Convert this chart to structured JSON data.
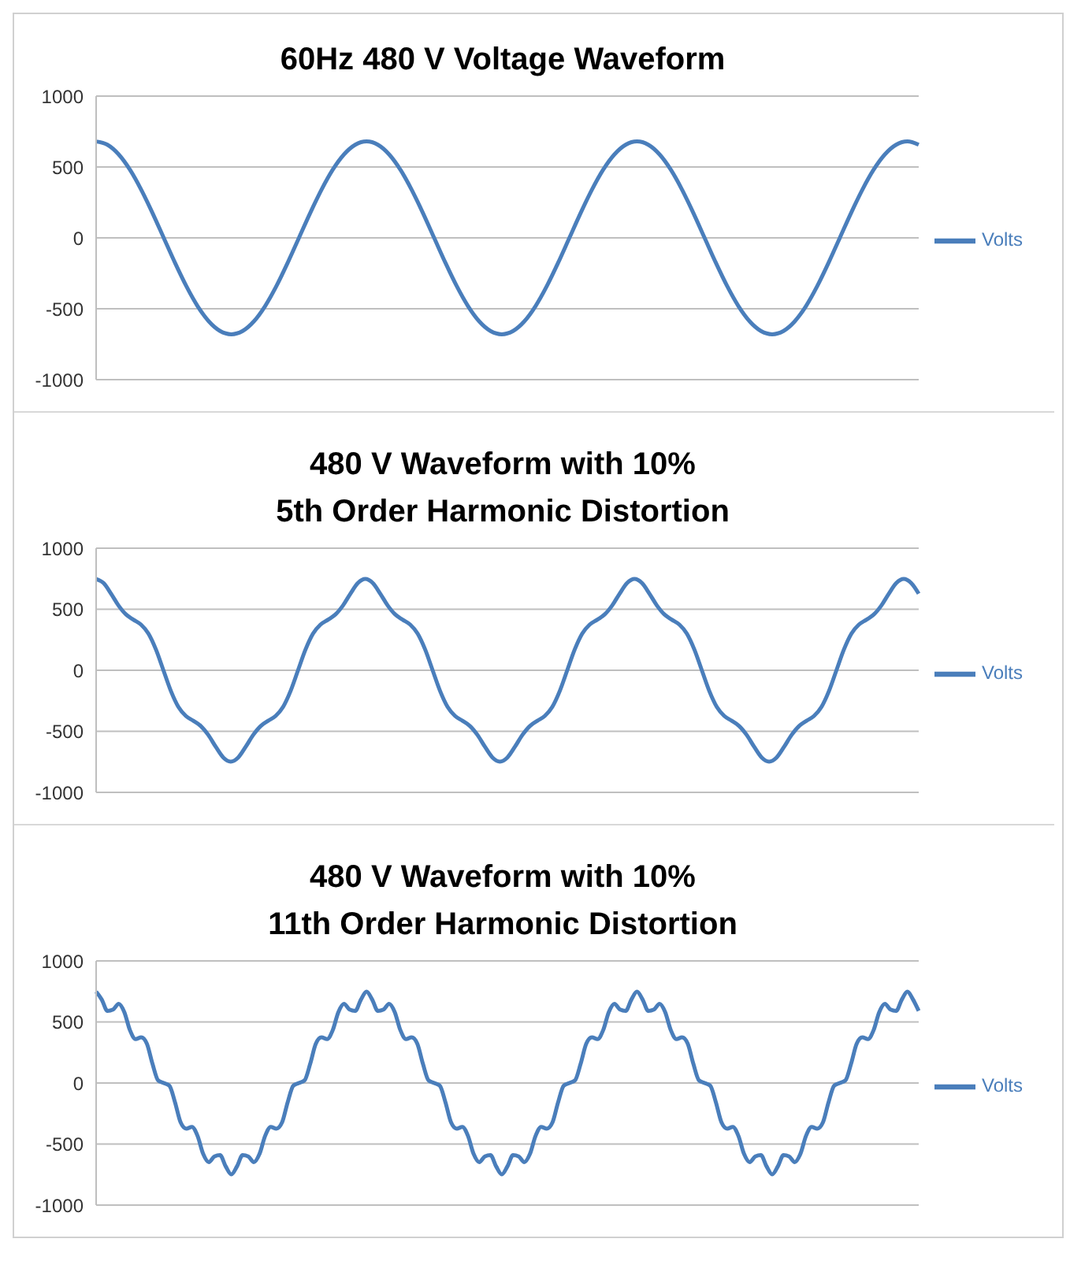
{
  "chart_data": [
    {
      "type": "line",
      "title": "60Hz 480 V Voltage Waveform",
      "categories": [
        null,
        null,
        null,
        null,
        null,
        null,
        null,
        null,
        null,
        null,
        null,
        null,
        null,
        null,
        null,
        null,
        null,
        null,
        null,
        null,
        null,
        null,
        null,
        null,
        null,
        null,
        null,
        null,
        null,
        null,
        null,
        null,
        null,
        null,
        null,
        null,
        null,
        null,
        null,
        null,
        null,
        null,
        null,
        null,
        null,
        null,
        null,
        null,
        null,
        null,
        null,
        null,
        null,
        null,
        null,
        null,
        null,
        null,
        null,
        null,
        null,
        null,
        null,
        null,
        null,
        null,
        null,
        null,
        null,
        null,
        null,
        null,
        null,
        null
      ],
      "series": [
        {
          "name": "Volts",
          "color": "#4a7ebb",
          "values": [
            680,
            657,
            589,
            481,
            340,
            176,
            0,
            -176,
            -340,
            -481,
            -589,
            -657,
            -680,
            -657,
            -589,
            -481,
            -340,
            -176,
            0,
            176,
            340,
            481,
            589,
            657,
            680,
            657,
            589,
            481,
            340,
            176,
            0,
            -176,
            -340,
            -481,
            -589,
            -657,
            -680,
            -657,
            -589,
            -481,
            -340,
            -176,
            0,
            176,
            340,
            481,
            589,
            657,
            680,
            657,
            589,
            481,
            340,
            176,
            0,
            -176,
            -340,
            -481,
            -589,
            -657,
            -680,
            -657,
            -589,
            -481,
            -340,
            -176,
            0,
            176,
            340,
            481,
            589,
            657,
            680,
            657
          ]
        }
      ],
      "ylim": [
        -1000,
        1000
      ],
      "yticks": [
        -1000,
        -500,
        0,
        500,
        1000
      ],
      "grid": "y",
      "legend": "right",
      "marker": "none",
      "line_style": "solid"
    },
    {
      "type": "line",
      "title": "480 V Waveform with 10%\n5th Order Harmonic Distortion",
      "categories": [
        null,
        null,
        null,
        null,
        null,
        null,
        null,
        null,
        null,
        null,
        null,
        null,
        null,
        null,
        null,
        null,
        null,
        null,
        null,
        null,
        null,
        null,
        null,
        null,
        null,
        null,
        null,
        null,
        null,
        null,
        null,
        null,
        null,
        null,
        null,
        null,
        null,
        null,
        null,
        null,
        null,
        null,
        null,
        null,
        null,
        null,
        null,
        null,
        null,
        null,
        null,
        null,
        null,
        null,
        null,
        null,
        null,
        null,
        null,
        null,
        null,
        null,
        null,
        null,
        null,
        null,
        null,
        null,
        null,
        null,
        null,
        null,
        null,
        null,
        null,
        null,
        null,
        null,
        null,
        null,
        null,
        null,
        null,
        null,
        null,
        null,
        null,
        null,
        null,
        null,
        null,
        null,
        null,
        null,
        null,
        null,
        null,
        null,
        null,
        null,
        null,
        null,
        null,
        null,
        null,
        null,
        null,
        null,
        null,
        null,
        null
      ],
      "series": [
        {
          "name": "Volts",
          "color": "#4a7ebb",
          "values": [
            748,
            714,
            627,
            530,
            457,
            414,
            374,
            300,
            170,
            0,
            -170,
            -300,
            -374,
            -414,
            -457,
            -530,
            -627,
            -714,
            -748,
            -714,
            -627,
            -530,
            -457,
            -414,
            -374,
            -300,
            -170,
            0,
            170,
            300,
            374,
            414,
            457,
            530,
            627,
            714,
            748,
            714,
            627,
            530,
            457,
            414,
            374,
            300,
            170,
            0,
            -170,
            -300,
            -374,
            -414,
            -457,
            -530,
            -627,
            -714,
            -748,
            -714,
            -627,
            -530,
            -457,
            -414,
            -374,
            -300,
            -170,
            0,
            170,
            300,
            374,
            414,
            457,
            530,
            627,
            714,
            748,
            714,
            627,
            530,
            457,
            414,
            374,
            300,
            170,
            0,
            -170,
            -300,
            -374,
            -414,
            -457,
            -530,
            -627,
            -714,
            -748,
            -714,
            -627,
            -530,
            -457,
            -414,
            -374,
            -300,
            -170,
            0,
            170,
            300,
            374,
            414,
            457,
            530,
            627,
            714,
            748,
            714,
            627
          ]
        }
      ],
      "ylim": [
        -1000,
        1000
      ],
      "yticks": [
        -1000,
        -500,
        0,
        500,
        1000
      ],
      "grid": "y",
      "legend": "right",
      "marker": "none",
      "line_style": "solid"
    },
    {
      "type": "line",
      "title": "480 V Waveform with 10%\n11th Order Harmonic Distortion",
      "categories": [
        null,
        null,
        null,
        null,
        null,
        null,
        null,
        null,
        null,
        null,
        null,
        null,
        null,
        null,
        null,
        null,
        null,
        null,
        null,
        null,
        null,
        null,
        null,
        null,
        null,
        null,
        null,
        null,
        null,
        null,
        null,
        null,
        null,
        null,
        null,
        null,
        null,
        null,
        null,
        null,
        null,
        null,
        null,
        null,
        null,
        null,
        null,
        null,
        null,
        null,
        null,
        null,
        null,
        null,
        null,
        null,
        null,
        null,
        null,
        null,
        null,
        null,
        null,
        null,
        null,
        null,
        null,
        null,
        null,
        null,
        null,
        null,
        null,
        null,
        null,
        null,
        null,
        null,
        null,
        null,
        null,
        null,
        null,
        null,
        null,
        null,
        null,
        null,
        null,
        null,
        null,
        null,
        null,
        null,
        null,
        null,
        null,
        null,
        null,
        null,
        null,
        null,
        null,
        null,
        null,
        null,
        null,
        null,
        null,
        null,
        null,
        null,
        null,
        null,
        null,
        null,
        null,
        null,
        null,
        null,
        null,
        null,
        null,
        null,
        null,
        null,
        null,
        null,
        null,
        null,
        null,
        null,
        null,
        null,
        null,
        null,
        null,
        null,
        null,
        null,
        null,
        null,
        null,
        null,
        null,
        null,
        null
      ],
      "series": [
        {
          "name": "Volts",
          "color": "#4a7ebb",
          "values": [
            748,
            683,
            591,
            602,
            648,
            581,
            433,
            360,
            374,
            323,
            158,
            22,
            0,
            -22,
            -158,
            -323,
            -374,
            -360,
            -433,
            -581,
            -648,
            -602,
            -591,
            -683,
            -748,
            -683,
            -591,
            -602,
            -648,
            -581,
            -433,
            -360,
            -374,
            -323,
            -158,
            -22,
            0,
            22,
            158,
            323,
            374,
            360,
            433,
            581,
            648,
            602,
            591,
            683,
            748,
            683,
            591,
            602,
            648,
            581,
            433,
            360,
            374,
            323,
            158,
            22,
            0,
            -22,
            -158,
            -323,
            -374,
            -360,
            -433,
            -581,
            -648,
            -602,
            -591,
            -683,
            -748,
            -683,
            -591,
            -602,
            -648,
            -581,
            -433,
            -360,
            -374,
            -323,
            -158,
            -22,
            0,
            22,
            158,
            323,
            374,
            360,
            433,
            581,
            648,
            602,
            591,
            683,
            748,
            683,
            591,
            602,
            648,
            581,
            433,
            360,
            374,
            323,
            158,
            22,
            0,
            -22,
            -158,
            -323,
            -374,
            -360,
            -433,
            -581,
            -648,
            -602,
            -591,
            -683,
            -748,
            -683,
            -591,
            -602,
            -648,
            -581,
            -433,
            -360,
            -374,
            -323,
            -158,
            -22,
            0,
            22,
            158,
            323,
            374,
            360,
            433,
            581,
            648,
            602,
            591,
            683,
            748,
            683,
            591
          ]
        }
      ],
      "ylim": [
        -1000,
        1000
      ],
      "yticks": [
        -1000,
        -500,
        0,
        500,
        1000
      ],
      "grid": "y",
      "legend": "right",
      "marker": "none",
      "line_style": "solid"
    }
  ]
}
